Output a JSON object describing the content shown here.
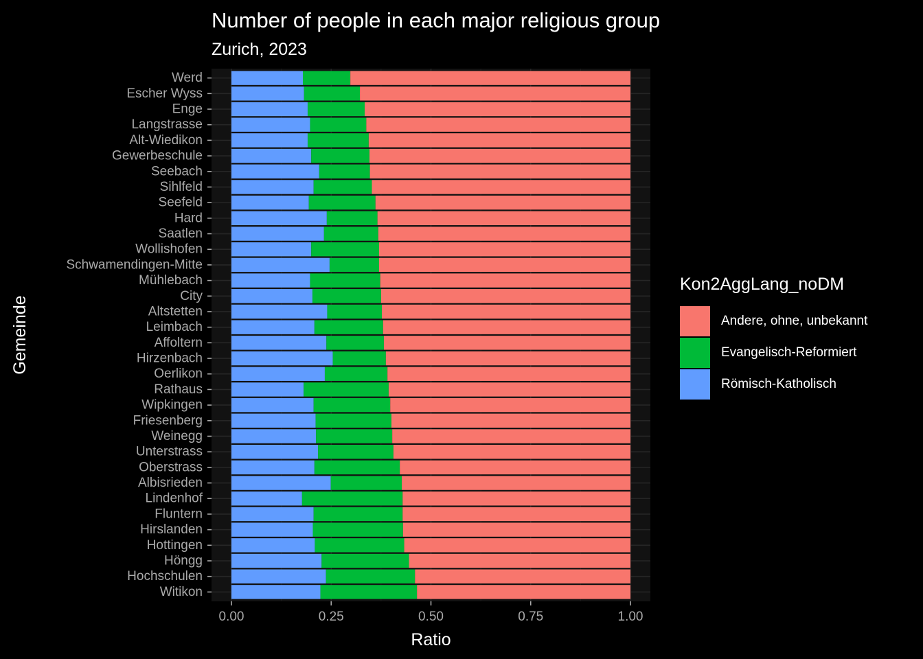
{
  "chart_data": {
    "type": "bar",
    "orientation": "horizontal",
    "stacked": true,
    "title": "Number of people in each major religious group",
    "subtitle": "Zurich, 2023",
    "xlabel": "Ratio",
    "ylabel": "Gemeinde",
    "xlim": [
      0,
      1
    ],
    "xticks": [
      "0.00",
      "0.25",
      "0.50",
      "0.75",
      "1.00"
    ],
    "grid": true,
    "legend_title": "Kon2AggLang_noDM",
    "legend_position": "right",
    "categories": [
      "Werd",
      "Escher Wyss",
      "Enge",
      "Langstrasse",
      "Alt-Wiedikon",
      "Gewerbeschule",
      "Seebach",
      "Sihlfeld",
      "Seefeld",
      "Hard",
      "Saatlen",
      "Wollishofen",
      "Schwamendingen-Mitte",
      "Mühlebach",
      "City",
      "Altstetten",
      "Leimbach",
      "Affoltern",
      "Hirzenbach",
      "Oerlikon",
      "Rathaus",
      "Wipkingen",
      "Friesenberg",
      "Weinegg",
      "Unterstrass",
      "Oberstrass",
      "Albisrieden",
      "Lindenhof",
      "Fluntern",
      "Hirslanden",
      "Hottingen",
      "Höngg",
      "Hochschulen",
      "Witikon"
    ],
    "series": [
      {
        "name": "Andere, ohne, unbekannt",
        "color": "#F8766D",
        "values": [
          0.702,
          0.678,
          0.666,
          0.662,
          0.656,
          0.654,
          0.653,
          0.648,
          0.639,
          0.634,
          0.632,
          0.63,
          0.63,
          0.627,
          0.625,
          0.623,
          0.62,
          0.618,
          0.613,
          0.609,
          0.606,
          0.602,
          0.599,
          0.597,
          0.594,
          0.578,
          0.573,
          0.571,
          0.571,
          0.57,
          0.567,
          0.555,
          0.54,
          0.535
        ]
      },
      {
        "name": "Evangelisch-Reformiert",
        "color": "#00BA38",
        "values": [
          0.119,
          0.14,
          0.143,
          0.141,
          0.153,
          0.146,
          0.127,
          0.146,
          0.167,
          0.127,
          0.136,
          0.17,
          0.124,
          0.176,
          0.172,
          0.137,
          0.172,
          0.144,
          0.133,
          0.157,
          0.213,
          0.192,
          0.19,
          0.191,
          0.189,
          0.214,
          0.178,
          0.252,
          0.223,
          0.226,
          0.224,
          0.219,
          0.223,
          0.242
        ]
      },
      {
        "name": "Römisch-Katholisch",
        "color": "#619CFF",
        "values": [
          0.179,
          0.182,
          0.191,
          0.197,
          0.191,
          0.2,
          0.22,
          0.206,
          0.194,
          0.239,
          0.232,
          0.2,
          0.246,
          0.197,
          0.203,
          0.24,
          0.208,
          0.238,
          0.254,
          0.234,
          0.181,
          0.206,
          0.211,
          0.212,
          0.217,
          0.208,
          0.249,
          0.177,
          0.206,
          0.204,
          0.209,
          0.226,
          0.237,
          0.223
        ]
      }
    ]
  }
}
